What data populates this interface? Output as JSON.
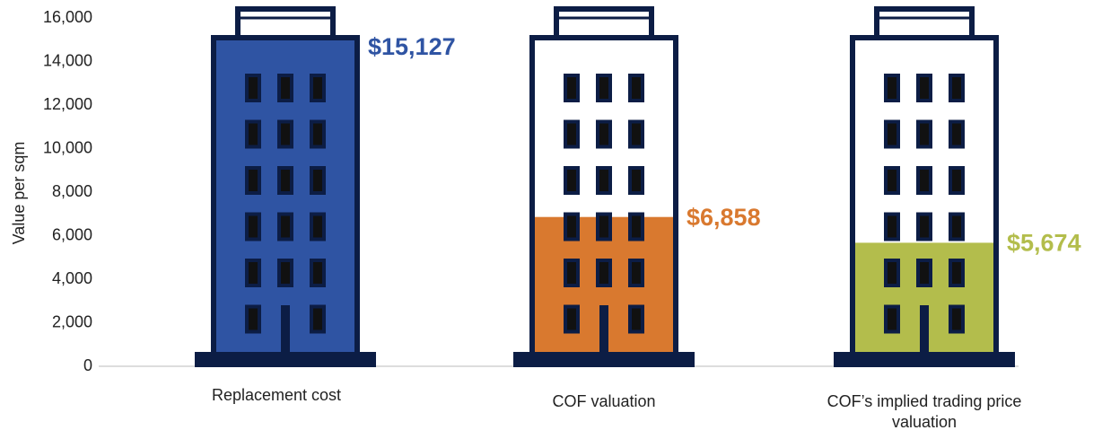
{
  "chart_data": {
    "type": "building-bar",
    "y_label": "Value per sqm",
    "categories": [
      "Replacement cost",
      "COF valuation",
      "COF’s implied trading price valuation"
    ],
    "values": [
      15127,
      6858,
      5674
    ],
    "value_labels": [
      "$15,127",
      "$6,858",
      "$5,674"
    ],
    "colors": [
      "#2f54a3",
      "#d9792f",
      "#b3bd4c"
    ],
    "ylim": [
      0,
      16000
    ],
    "yticks": [
      0,
      {
        "value": 2000,
        "label": "2,000"
      },
      {
        "value": 4000,
        "label": "4,000"
      },
      {
        "value": 6000,
        "label": "6,000"
      },
      {
        "value": 8000,
        "label": "8,000"
      },
      {
        "value": 10000,
        "label": "10,000"
      },
      {
        "value": 12000,
        "label": "12,000"
      },
      {
        "value": 14000,
        "label": "14,000"
      },
      {
        "value": 16000,
        "label": "16,000"
      }
    ]
  }
}
